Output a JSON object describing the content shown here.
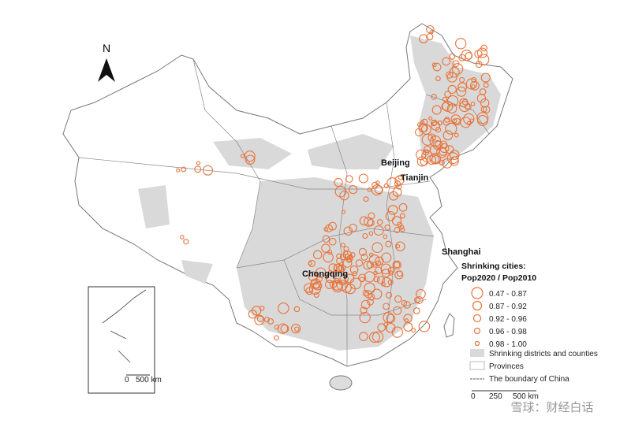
{
  "north": "N",
  "cities": {
    "beijing": "Beijing",
    "tianjin": "Tianjin",
    "shanghai": "Shanghai",
    "chongqing": "Chongqing"
  },
  "legend": {
    "title": [
      "Shrinking cities:",
      "Pop2020 / Pop2010"
    ],
    "classes": [
      "0.47 - 0.87",
      "0.87 - 0.92",
      "0.92 - 0.96",
      "0.96 - 0.98",
      "0.98 - 1.00"
    ],
    "shrinking": "Shrinking districts and counties",
    "provinces": "Provinces",
    "boundary": "The boundary of China"
  },
  "scale": {
    "main": [
      "0",
      "250",
      "500 km"
    ],
    "inset": [
      "0",
      "500 km"
    ]
  },
  "watermark": "雪球：财经白话"
}
